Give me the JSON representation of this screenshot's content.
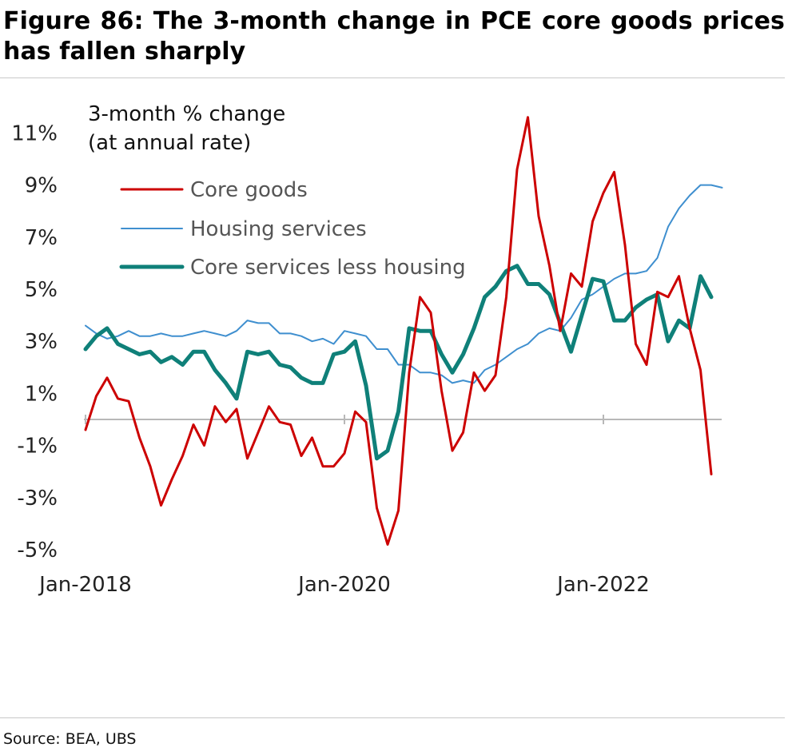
{
  "title": "Figure 86: The 3-month change in PCE core goods prices has fallen sharply",
  "source": "Source: BEA, UBS",
  "chart_data": {
    "type": "line",
    "annotation": [
      "3-month % change",
      "(at annual rate)"
    ],
    "xlabel": "",
    "ylabel": "",
    "x_tick_labels": [
      "Jan-2018",
      "Jan-2020",
      "Jan-2022"
    ],
    "x_start": "Jan-2018",
    "y_ticks": [
      "11%",
      "9%",
      "7%",
      "5%",
      "3%",
      "1%",
      "-1%",
      "-3%",
      "-5%"
    ],
    "ylim": [
      -5,
      12
    ],
    "grid": false,
    "legend_position": "top-left",
    "series": [
      {
        "name": "Core goods",
        "color": "#cc0000",
        "values": [
          -0.4,
          0.9,
          1.6,
          0.8,
          0.7,
          -0.7,
          -1.8,
          -3.3,
          -2.3,
          -1.4,
          -0.2,
          -1.0,
          0.5,
          -0.1,
          0.4,
          -1.5,
          -0.5,
          0.5,
          -0.1,
          -0.2,
          -1.4,
          -0.7,
          -1.8,
          -1.8,
          -1.3,
          0.3,
          -0.1,
          -3.4,
          -4.8,
          -3.5,
          1.8,
          4.7,
          4.1,
          1.1,
          -1.2,
          -0.5,
          1.8,
          1.1,
          1.7,
          4.7,
          9.6,
          11.6,
          7.8,
          5.9,
          3.4,
          5.6,
          5.1,
          7.6,
          8.7,
          9.5,
          6.7,
          2.9,
          2.1,
          4.9,
          4.7,
          5.5,
          3.5,
          1.9,
          -2.1
        ]
      },
      {
        "name": "Housing services",
        "color": "#3f8fcf",
        "values": [
          3.6,
          3.3,
          3.1,
          3.2,
          3.4,
          3.2,
          3.2,
          3.3,
          3.2,
          3.2,
          3.3,
          3.4,
          3.3,
          3.2,
          3.4,
          3.8,
          3.7,
          3.7,
          3.3,
          3.3,
          3.2,
          3.0,
          3.1,
          2.9,
          3.4,
          3.3,
          3.2,
          2.7,
          2.7,
          2.1,
          2.1,
          1.8,
          1.8,
          1.7,
          1.4,
          1.5,
          1.4,
          1.9,
          2.1,
          2.4,
          2.7,
          2.9,
          3.3,
          3.5,
          3.4,
          3.9,
          4.6,
          4.8,
          5.1,
          5.4,
          5.6,
          5.6,
          5.7,
          6.2,
          7.4,
          8.1,
          8.6,
          9.0,
          9.0,
          8.9
        ]
      },
      {
        "name": "Core services less housing",
        "color": "#0f8079",
        "values": [
          2.7,
          3.2,
          3.5,
          2.9,
          2.7,
          2.5,
          2.6,
          2.2,
          2.4,
          2.1,
          2.6,
          2.6,
          1.9,
          1.4,
          0.8,
          2.6,
          2.5,
          2.6,
          2.1,
          2.0,
          1.6,
          1.4,
          1.4,
          2.5,
          2.6,
          3.0,
          1.3,
          -1.5,
          -1.2,
          0.3,
          3.5,
          3.4,
          3.4,
          2.5,
          1.8,
          2.5,
          3.5,
          4.7,
          5.1,
          5.7,
          5.9,
          5.2,
          5.2,
          4.8,
          3.7,
          2.6,
          4.0,
          5.4,
          5.3,
          3.8,
          3.8,
          4.3,
          4.6,
          4.8,
          3.0,
          3.8,
          3.5,
          5.5,
          4.7
        ]
      }
    ]
  }
}
